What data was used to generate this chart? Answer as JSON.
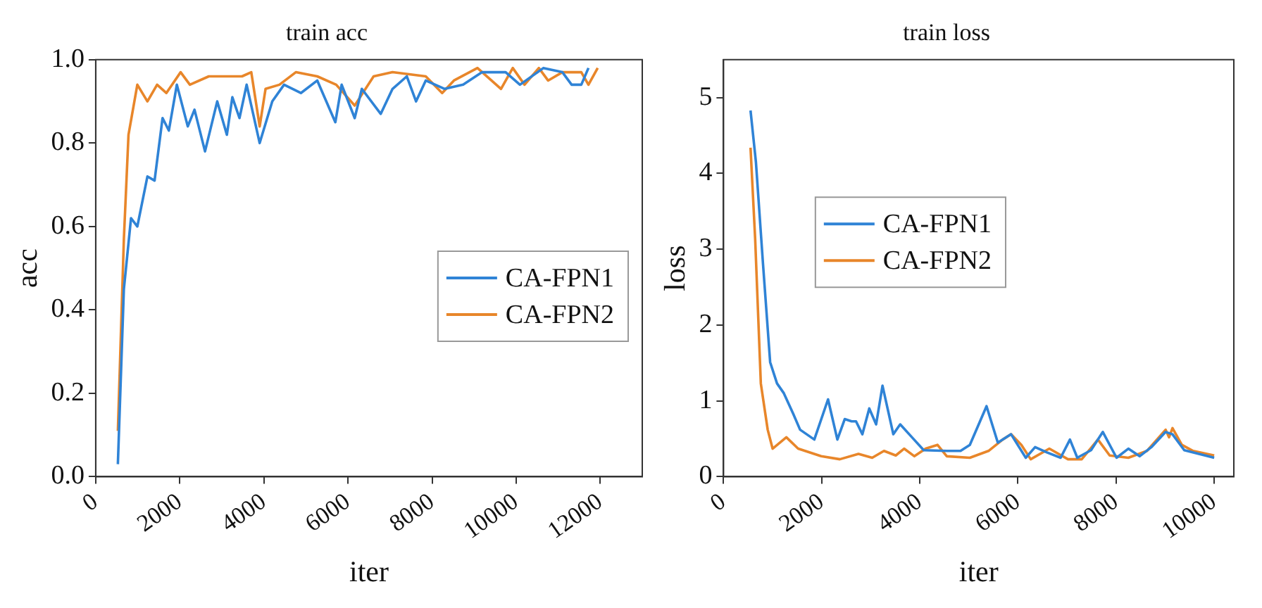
{
  "chart_data": [
    {
      "type": "line",
      "title": "train acc",
      "xlabel": "iter",
      "ylabel": "acc",
      "xlim": [
        0,
        13000
      ],
      "xticks": [
        0,
        2000,
        4000,
        6000,
        8000,
        10000,
        12000
      ],
      "ylim": [
        0,
        1.0
      ],
      "yticks": [
        {
          "value": 0,
          "label": "0.0"
        },
        {
          "value": 0.2,
          "label": "0.2"
        },
        {
          "value": 0.4,
          "label": "0.4"
        },
        {
          "value": 0.6,
          "label": "0.6"
        },
        {
          "value": 0.8,
          "label": "0.8"
        },
        {
          "value": 1.0,
          "label": "1.0"
        }
      ],
      "grid": false,
      "legend": "right",
      "marker": "none",
      "line_style": "solid",
      "series": [
        {
          "name": "CA-FPN1",
          "color": "#2f83d6",
          "x": [
            527,
            670,
            840,
            990,
            1230,
            1400,
            1590,
            1740,
            1930,
            2190,
            2350,
            2600,
            2890,
            3120,
            3250,
            3420,
            3590,
            3900,
            4200,
            4480,
            4880,
            5270,
            5700,
            5850,
            6160,
            6330,
            6780,
            7060,
            7400,
            7620,
            7850,
            8300,
            8740,
            9190,
            9750,
            10090,
            10650,
            11100,
            11320,
            11550,
            11720
          ],
          "values": [
            0.03,
            0.45,
            0.62,
            0.6,
            0.72,
            0.71,
            0.86,
            0.83,
            0.94,
            0.84,
            0.88,
            0.78,
            0.9,
            0.82,
            0.91,
            0.86,
            0.94,
            0.8,
            0.9,
            0.94,
            0.92,
            0.95,
            0.85,
            0.94,
            0.86,
            0.93,
            0.87,
            0.93,
            0.96,
            0.9,
            0.95,
            0.93,
            0.94,
            0.97,
            0.97,
            0.94,
            0.98,
            0.97,
            0.94,
            0.94,
            0.98
          ]
        },
        {
          "name": "CA-FPN2",
          "color": "#e8862a",
          "x": [
            527,
            670,
            780,
            990,
            1230,
            1460,
            1680,
            2020,
            2240,
            2690,
            3480,
            3700,
            3900,
            4040,
            4370,
            4760,
            5270,
            5720,
            6160,
            6610,
            7060,
            7850,
            8240,
            8520,
            9080,
            9640,
            9920,
            10200,
            10540,
            10760,
            11100,
            11550,
            11720,
            11940
          ],
          "values": [
            0.11,
            0.57,
            0.82,
            0.94,
            0.9,
            0.94,
            0.92,
            0.97,
            0.94,
            0.96,
            0.96,
            0.97,
            0.84,
            0.93,
            0.94,
            0.97,
            0.96,
            0.94,
            0.89,
            0.96,
            0.97,
            0.96,
            0.92,
            0.95,
            0.98,
            0.93,
            0.98,
            0.94,
            0.98,
            0.95,
            0.97,
            0.97,
            0.94,
            0.98
          ]
        }
      ]
    },
    {
      "type": "line",
      "title": "train loss",
      "xlabel": "iter",
      "ylabel": "loss",
      "xlim": [
        0,
        10400
      ],
      "xticks": [
        0,
        2000,
        4000,
        6000,
        8000,
        10000
      ],
      "ylim": [
        0,
        5.5
      ],
      "yticks": [
        0,
        1,
        2,
        3,
        4,
        5
      ],
      "grid": false,
      "legend": "left",
      "marker": "none",
      "line_style": "solid",
      "series": [
        {
          "name": "CA-FPN1",
          "color": "#2f83d6",
          "x": [
            550,
            660,
            805,
            950,
            1090,
            1230,
            1420,
            1560,
            1850,
            2130,
            2320,
            2470,
            2610,
            2700,
            2830,
            2970,
            3110,
            3240,
            3460,
            3600,
            3840,
            4080,
            4550,
            4830,
            5020,
            5360,
            5590,
            5860,
            6160,
            6350,
            6590,
            6870,
            7060,
            7210,
            7490,
            7730,
            8010,
            8250,
            8480,
            8720,
            9010,
            9150,
            9390,
            10000
          ],
          "values": [
            4.83,
            4.15,
            2.8,
            1.51,
            1.23,
            1.1,
            0.83,
            0.62,
            0.49,
            1.02,
            0.49,
            0.76,
            0.73,
            0.73,
            0.56,
            0.9,
            0.69,
            1.2,
            0.56,
            0.69,
            0.52,
            0.35,
            0.34,
            0.34,
            0.42,
            0.93,
            0.45,
            0.56,
            0.25,
            0.39,
            0.32,
            0.25,
            0.49,
            0.25,
            0.35,
            0.59,
            0.25,
            0.37,
            0.27,
            0.39,
            0.59,
            0.56,
            0.35,
            0.25
          ]
        },
        {
          "name": "CA-FPN2",
          "color": "#e8862a",
          "x": [
            550,
            645,
            760,
            900,
            1000,
            1280,
            1520,
            1990,
            2370,
            2750,
            3030,
            3270,
            3510,
            3680,
            3890,
            4120,
            4360,
            4550,
            5020,
            5400,
            5690,
            5860,
            6070,
            6260,
            6640,
            7020,
            7300,
            7630,
            7870,
            8250,
            8630,
            9010,
            9080,
            9150,
            9340,
            9570,
            10000
          ],
          "values": [
            4.34,
            3.13,
            1.23,
            0.62,
            0.37,
            0.52,
            0.37,
            0.27,
            0.23,
            0.3,
            0.25,
            0.34,
            0.28,
            0.37,
            0.27,
            0.37,
            0.42,
            0.27,
            0.25,
            0.34,
            0.49,
            0.56,
            0.42,
            0.23,
            0.37,
            0.23,
            0.23,
            0.49,
            0.28,
            0.25,
            0.34,
            0.62,
            0.52,
            0.64,
            0.42,
            0.34,
            0.28
          ]
        }
      ]
    }
  ]
}
